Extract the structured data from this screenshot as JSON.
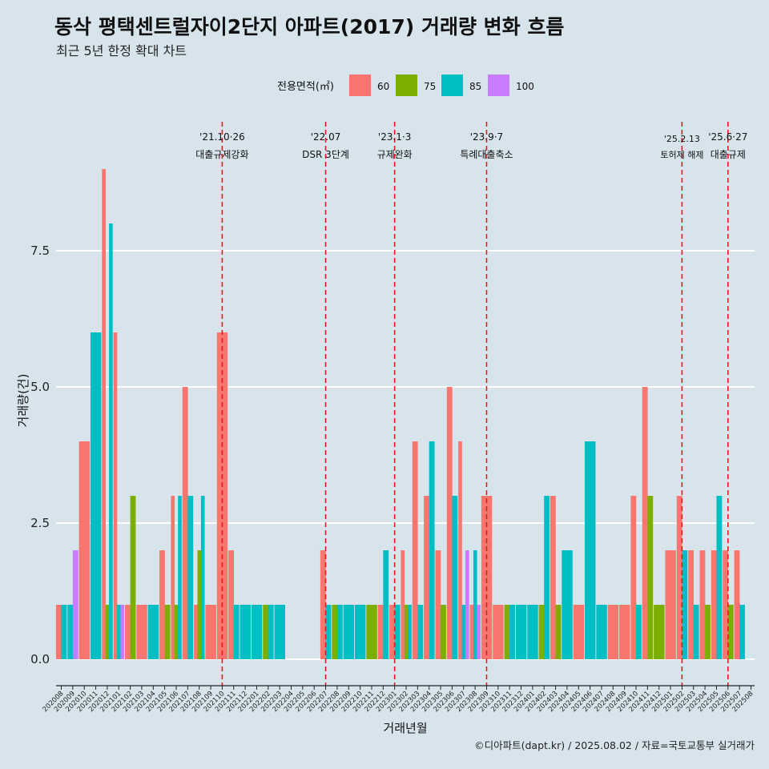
{
  "chart_data": {
    "type": "bar",
    "title": "동삭 평택센트럴자이2단지 아파트(2017) 거래량 변화 흐름",
    "subtitle": "최근 5년 한정 확대 차트",
    "xlabel": "거래년월",
    "ylabel": "거래량(건)",
    "ylim": [
      -0.4,
      9.6
    ],
    "yticks": [
      0.0,
      2.5,
      5.0,
      7.5
    ],
    "ytick_labels": [
      "0.0",
      "2.5",
      "5.0",
      "7.5"
    ],
    "legend": {
      "title": "전용면적(㎡)",
      "position": "top",
      "entries": [
        {
          "label": "60",
          "color": "#f8766d"
        },
        {
          "label": "75",
          "color": "#7cae00"
        },
        {
          "label": "85",
          "color": "#00bfc4"
        },
        {
          "label": "100",
          "color": "#c77cff"
        }
      ]
    },
    "series_colors": {
      "60": "#f8766d",
      "75": "#7cae00",
      "85": "#00bfc4",
      "100": "#c77cff"
    },
    "categories": [
      "202008",
      "202009",
      "202010",
      "202011",
      "202012",
      "202101",
      "202102",
      "202103",
      "202104",
      "202105",
      "202106",
      "202107",
      "202108",
      "202109",
      "202110",
      "202111",
      "202112",
      "202201",
      "202202",
      "202203",
      "202204",
      "202205",
      "202206",
      "202207",
      "202208",
      "202209",
      "202210",
      "202211",
      "202212",
      "202301",
      "202302",
      "202303",
      "202304",
      "202305",
      "202306",
      "202307",
      "202308",
      "202309",
      "202310",
      "202311",
      "202312",
      "202401",
      "202402",
      "202403",
      "202404",
      "202405",
      "202406",
      "202407",
      "202408",
      "202409",
      "202410",
      "202411",
      "202412",
      "202501",
      "202502",
      "202503",
      "202504",
      "202505",
      "202506",
      "202507",
      "202508"
    ],
    "data": {
      "202008": {
        "60": 1,
        "85": 1
      },
      "202009": {
        "85": 1,
        "100": 2
      },
      "202010": {
        "60": 4
      },
      "202011": {
        "85": 6
      },
      "202012": {
        "60": 9,
        "75": 1,
        "85": 8
      },
      "202101": {
        "60": 6,
        "85": 1,
        "100": 1
      },
      "202102": {
        "60": 1,
        "75": 3
      },
      "202103": {
        "60": 1
      },
      "202104": {
        "85": 1
      },
      "202105": {
        "60": 2,
        "75": 1
      },
      "202106": {
        "60": 3,
        "75": 1,
        "85": 3
      },
      "202107": {
        "60": 5,
        "85": 3
      },
      "202108": {
        "60": 1,
        "75": 2,
        "85": 3
      },
      "202109": {
        "60": 1
      },
      "202110": {
        "60": 6
      },
      "202111": {
        "60": 2,
        "85": 1
      },
      "202112": {
        "85": 1
      },
      "202201": {
        "85": 1
      },
      "202202": {
        "75": 1,
        "85": 1
      },
      "202203": {
        "85": 1
      },
      "202204": {},
      "202205": {},
      "202206": {},
      "202207": {
        "60": 2,
        "85": 1
      },
      "202208": {
        "75": 1,
        "85": 1
      },
      "202209": {
        "85": 1
      },
      "202210": {
        "85": 1
      },
      "202211": {
        "75": 1
      },
      "202212": {
        "60": 1,
        "85": 2
      },
      "202301": {
        "60": 1,
        "85": 1
      },
      "202302": {
        "60": 2,
        "75": 1,
        "85": 1
      },
      "202303": {
        "60": 4,
        "85": 1
      },
      "202304": {
        "60": 3,
        "85": 4
      },
      "202305": {
        "60": 2,
        "75": 1
      },
      "202306": {
        "60": 5,
        "85": 3
      },
      "202307": {
        "60": 4,
        "85": 1,
        "100": 2
      },
      "202308": {
        "60": 1,
        "85": 2,
        "100": 1
      },
      "202309": {
        "60": 3
      },
      "202310": {
        "60": 1
      },
      "202311": {
        "75": 1,
        "85": 1
      },
      "202312": {
        "85": 1
      },
      "202401": {
        "85": 1
      },
      "202402": {
        "75": 1,
        "85": 3
      },
      "202403": {
        "60": 3,
        "75": 1
      },
      "202404": {
        "85": 2
      },
      "202405": {
        "60": 1
      },
      "202406": {
        "85": 4
      },
      "202407": {
        "85": 1
      },
      "202408": {
        "60": 1
      },
      "202409": {
        "60": 1
      },
      "202410": {
        "60": 3,
        "85": 1
      },
      "202411": {
        "60": 5,
        "75": 3
      },
      "202412": {
        "75": 1
      },
      "202501": {
        "60": 2
      },
      "202502": {
        "60": 3,
        "85": 2
      },
      "202503": {
        "60": 2,
        "85": 1
      },
      "202504": {
        "60": 2,
        "75": 1
      },
      "202505": {
        "60": 2,
        "85": 3
      },
      "202506": {
        "60": 2,
        "75": 1
      },
      "202507": {
        "60": 2,
        "85": 1
      },
      "202508": {}
    },
    "annotations": [
      {
        "at": "202110",
        "line1": "'21.10·26",
        "line2": "대출규제강화"
      },
      {
        "at": "202207",
        "line1": "'22.07",
        "line2": "DSR 3단계"
      },
      {
        "at": "202301",
        "line1": "'23.1·3",
        "line2": "규제완화"
      },
      {
        "at": "202309",
        "line1": "'23.9·7",
        "line2": "특례대출축소"
      },
      {
        "at": "202502",
        "line1": "'25.2.13",
        "line2": "토허제 해제",
        "small": true
      },
      {
        "at": "202506",
        "line1": "'25.6·27",
        "line2": "대출규제"
      }
    ],
    "annotation_line_color": "#e41a1c",
    "caption": "©디아파트(dapt.kr) / 2025.08.02 / 자료=국토교통부 실거래가"
  }
}
